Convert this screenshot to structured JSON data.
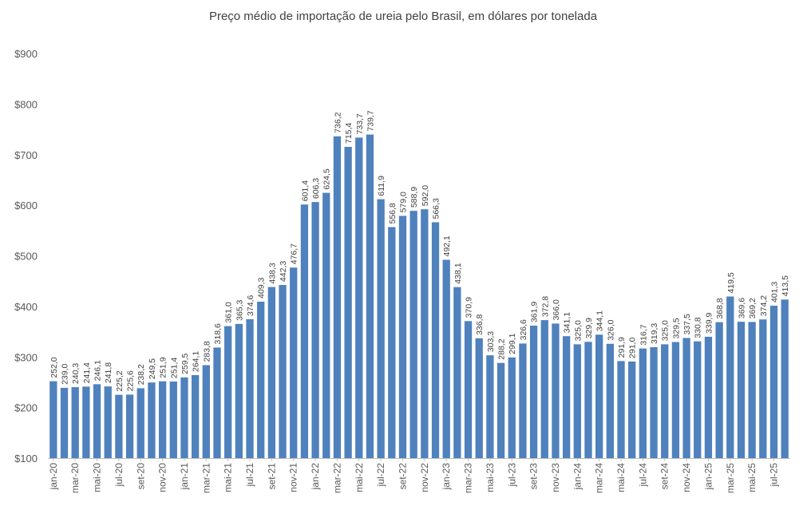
{
  "chart_data": {
    "type": "bar",
    "title": "Preço médio de importação de ureia pelo Brasil, em dólares por tonelada",
    "xlabel": "",
    "ylabel": "",
    "ylim": [
      100,
      900
    ],
    "y_ticks": [
      100,
      200,
      300,
      400,
      500,
      600,
      700,
      800,
      900
    ],
    "y_tick_prefix": "$",
    "grid": false,
    "legend": "none",
    "bar_color": "#4F81BD",
    "x_tick_labels": [
      "jan-20",
      "mar-20",
      "mai-20",
      "jul-20",
      "set-20",
      "nov-20",
      "jan-21",
      "mar-21",
      "mai-21",
      "jul-21",
      "set-21",
      "nov-21",
      "jan-22",
      "mar-22",
      "mai-22",
      "jul-22",
      "set-22",
      "nov-22",
      "jan-23",
      "mar-23",
      "mai-23",
      "jul-23",
      "set-23",
      "nov-23",
      "jan-24",
      "mar-24",
      "mai-24",
      "jul-24",
      "set-24",
      "nov-24",
      "jan-25",
      "mar-25",
      "mai-25",
      "jul-25"
    ],
    "x_tick_every": 2,
    "values": [
      252.0,
      239.0,
      240.3,
      241.4,
      246.1,
      241.8,
      225.2,
      225.6,
      238.2,
      249.5,
      251.9,
      251.4,
      259.5,
      264.1,
      283.8,
      318.6,
      361.0,
      365.3,
      374.6,
      409.3,
      438.3,
      442.3,
      476.7,
      601.4,
      606.3,
      624.5,
      736.2,
      715.4,
      733.7,
      739.7,
      611.9,
      556.8,
      579.0,
      588.9,
      592.0,
      566.3,
      492.1,
      438.1,
      370.9,
      336.8,
      303.3,
      288.2,
      299.1,
      326.6,
      361.9,
      372.8,
      366.0,
      341.1,
      325.0,
      329.9,
      344.1,
      326.0,
      291.9,
      291.0,
      316.7,
      319.3,
      325.0,
      329.5,
      337.5,
      330.8,
      339.9,
      368.8,
      419.5,
      369.6,
      369.2,
      374.2,
      401.3,
      413.5
    ]
  }
}
